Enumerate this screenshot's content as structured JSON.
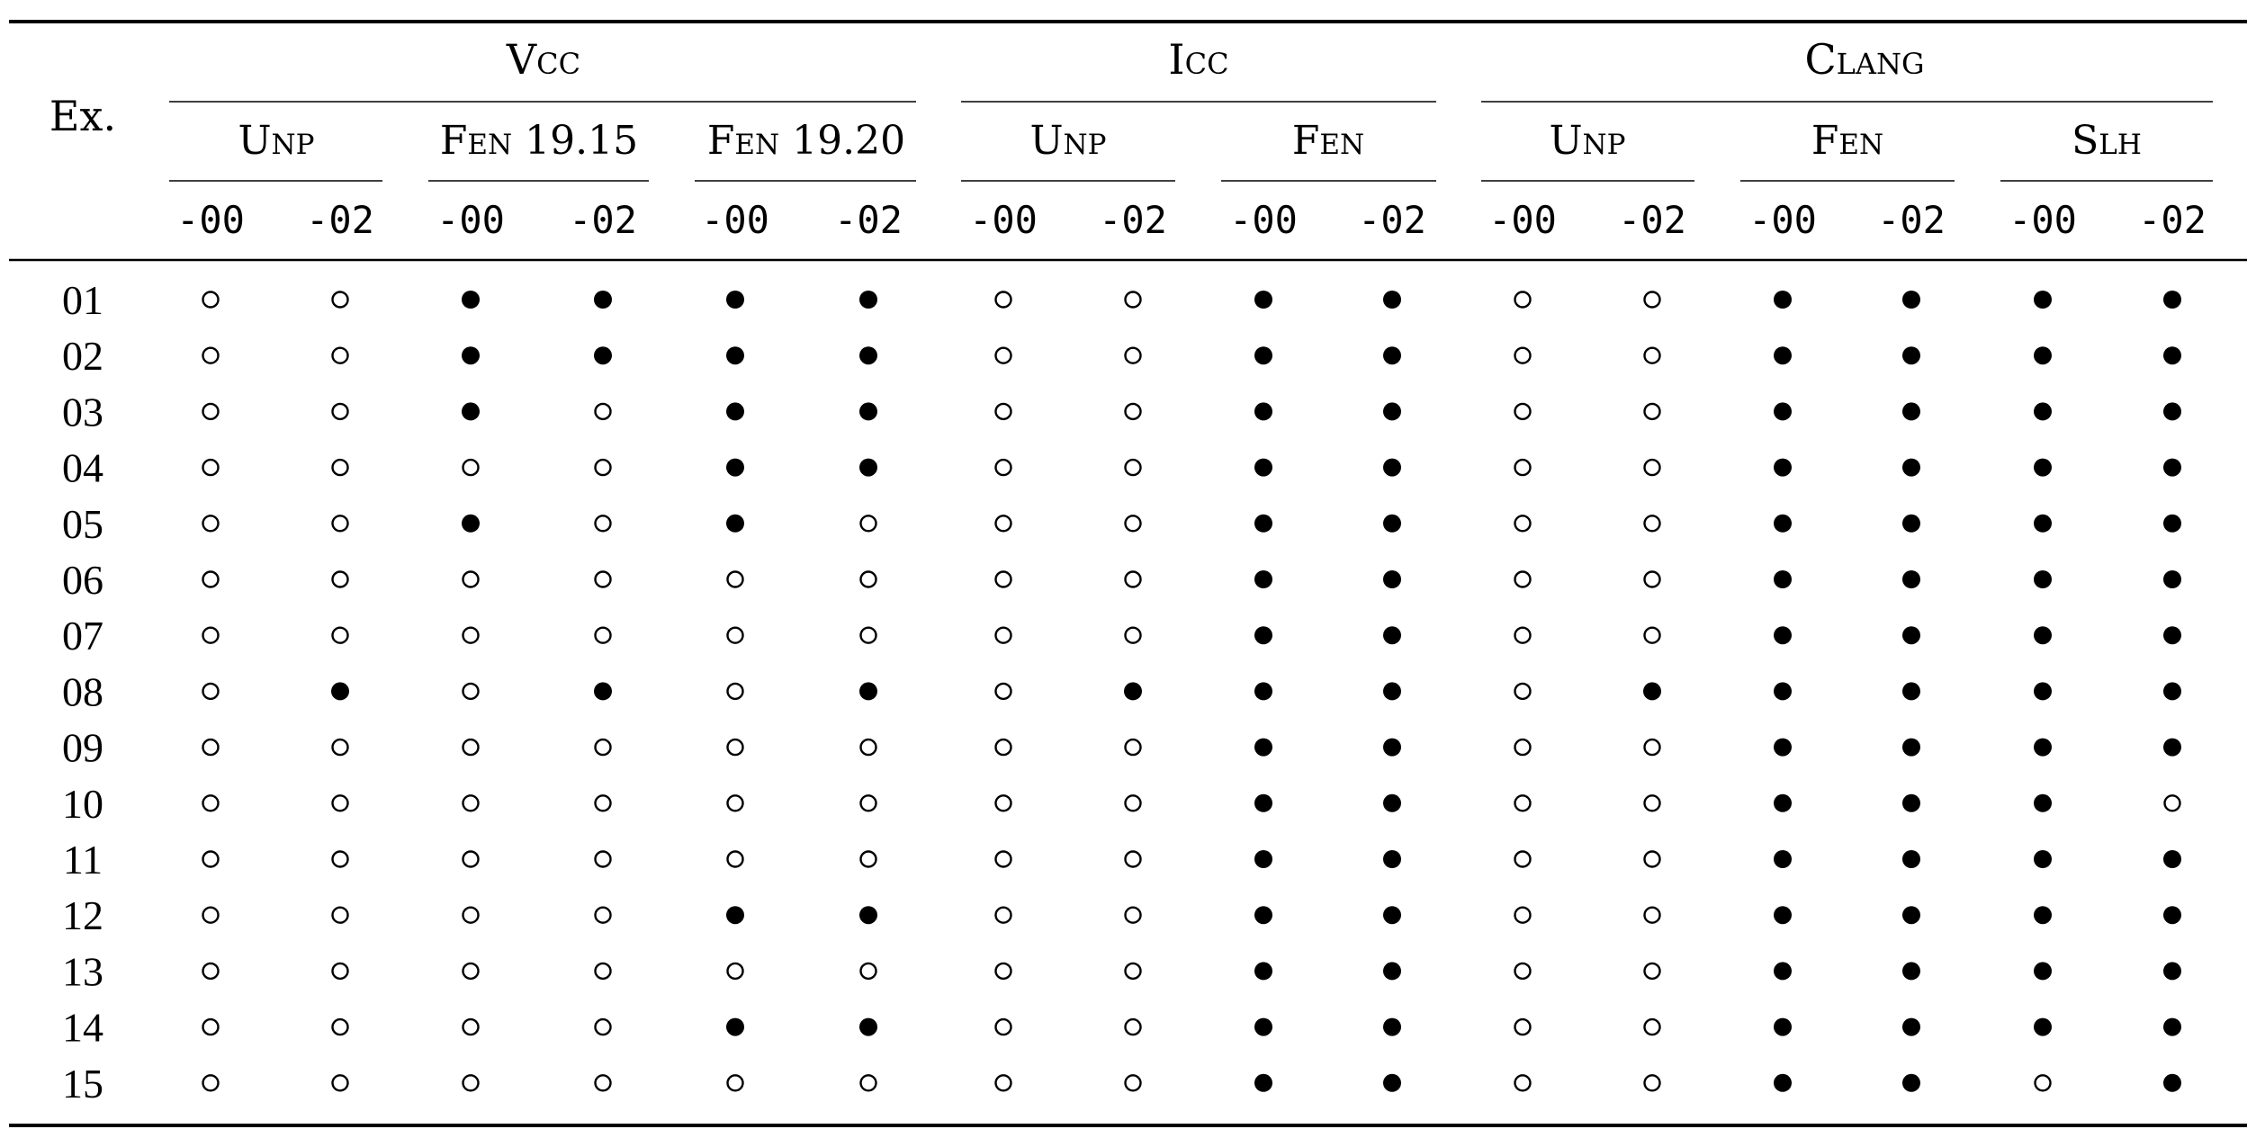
{
  "table": {
    "row_header": "Ex.",
    "groups": [
      {
        "label": "Vcc",
        "subgroups": [
          {
            "label": "Unp"
          },
          {
            "label": "Fen 19.15"
          },
          {
            "label": "Fen 19.20"
          }
        ]
      },
      {
        "label": "Icc",
        "subgroups": [
          {
            "label": "Unp"
          },
          {
            "label": "Fen"
          }
        ]
      },
      {
        "label": "Clang",
        "subgroups": [
          {
            "label": "Unp"
          },
          {
            "label": "Fen"
          },
          {
            "label": "Slh"
          }
        ]
      }
    ],
    "leaf_labels": [
      "-00",
      "-02"
    ],
    "legend_note": "1 = filled circle (●), 0 = hollow circle (○)",
    "rows": [
      {
        "id": "01",
        "cells": [
          0,
          0,
          1,
          1,
          1,
          1,
          0,
          0,
          1,
          1,
          0,
          0,
          1,
          1,
          1,
          1
        ]
      },
      {
        "id": "02",
        "cells": [
          0,
          0,
          1,
          1,
          1,
          1,
          0,
          0,
          1,
          1,
          0,
          0,
          1,
          1,
          1,
          1
        ]
      },
      {
        "id": "03",
        "cells": [
          0,
          0,
          1,
          0,
          1,
          1,
          0,
          0,
          1,
          1,
          0,
          0,
          1,
          1,
          1,
          1
        ]
      },
      {
        "id": "04",
        "cells": [
          0,
          0,
          0,
          0,
          1,
          1,
          0,
          0,
          1,
          1,
          0,
          0,
          1,
          1,
          1,
          1
        ]
      },
      {
        "id": "05",
        "cells": [
          0,
          0,
          1,
          0,
          1,
          0,
          0,
          0,
          1,
          1,
          0,
          0,
          1,
          1,
          1,
          1
        ]
      },
      {
        "id": "06",
        "cells": [
          0,
          0,
          0,
          0,
          0,
          0,
          0,
          0,
          1,
          1,
          0,
          0,
          1,
          1,
          1,
          1
        ]
      },
      {
        "id": "07",
        "cells": [
          0,
          0,
          0,
          0,
          0,
          0,
          0,
          0,
          1,
          1,
          0,
          0,
          1,
          1,
          1,
          1
        ]
      },
      {
        "id": "08",
        "cells": [
          0,
          1,
          0,
          1,
          0,
          1,
          0,
          1,
          1,
          1,
          0,
          1,
          1,
          1,
          1,
          1
        ]
      },
      {
        "id": "09",
        "cells": [
          0,
          0,
          0,
          0,
          0,
          0,
          0,
          0,
          1,
          1,
          0,
          0,
          1,
          1,
          1,
          1
        ]
      },
      {
        "id": "10",
        "cells": [
          0,
          0,
          0,
          0,
          0,
          0,
          0,
          0,
          1,
          1,
          0,
          0,
          1,
          1,
          1,
          0
        ]
      },
      {
        "id": "11",
        "cells": [
          0,
          0,
          0,
          0,
          0,
          0,
          0,
          0,
          1,
          1,
          0,
          0,
          1,
          1,
          1,
          1
        ]
      },
      {
        "id": "12",
        "cells": [
          0,
          0,
          0,
          0,
          1,
          1,
          0,
          0,
          1,
          1,
          0,
          0,
          1,
          1,
          1,
          1
        ]
      },
      {
        "id": "13",
        "cells": [
          0,
          0,
          0,
          0,
          0,
          0,
          0,
          0,
          1,
          1,
          0,
          0,
          1,
          1,
          1,
          1
        ]
      },
      {
        "id": "14",
        "cells": [
          0,
          0,
          0,
          0,
          1,
          1,
          0,
          0,
          1,
          1,
          0,
          0,
          1,
          1,
          1,
          1
        ]
      },
      {
        "id": "15",
        "cells": [
          0,
          0,
          0,
          0,
          0,
          0,
          0,
          0,
          1,
          1,
          0,
          0,
          1,
          1,
          0,
          1
        ]
      }
    ]
  }
}
